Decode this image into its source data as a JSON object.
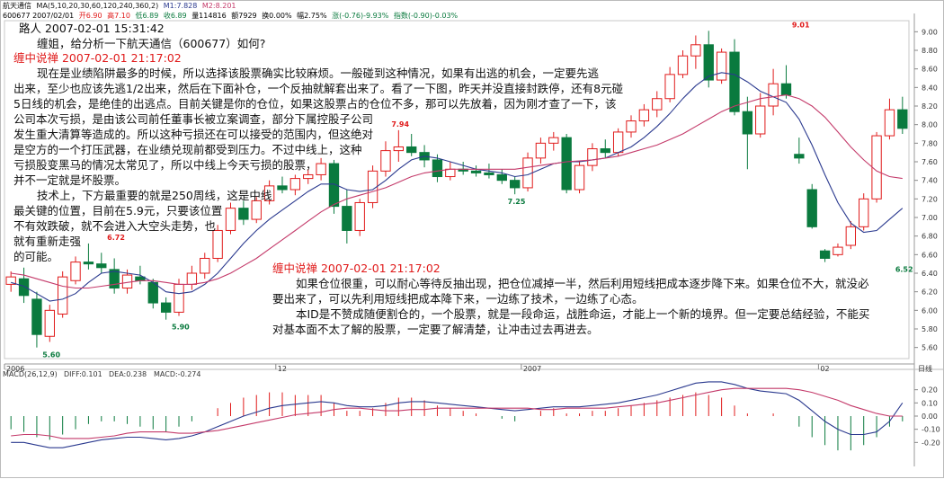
{
  "header": {
    "line1": {
      "stock": "航天通信",
      "ma_label": "MA(5,10,20,30,60,120,240,360,2)",
      "m1": "M1:7.828",
      "m2": "M2:8.201"
    },
    "line2": {
      "code_date": "600677 2007/02/01",
      "open": "开6.90",
      "high": "高7.10",
      "low": "低6.89",
      "close": "收6.89",
      "volume": "量114816",
      "amount": "额7929",
      "turnover": "换0.00%",
      "amplitude": "幅2.75%",
      "change": "涨(-0.76)-9.93%",
      "index": "指数(-0.90)-0.03%"
    },
    "colors": {
      "up": "#e01b1b",
      "down": "#0a7a3e",
      "ma1": "#2b3a8f",
      "ma2": "#c43a6a"
    }
  },
  "posts": [
    {
      "author": "路人 2007-02-01 15:31:42",
      "lines": [
        "缠姐，给分析一下航天通信（600677）如何?"
      ]
    },
    {
      "author": "缠中说禅 2007-02-01 21:17:02",
      "lines": [
        "现在是业绩陷阱最多的时候，所以选择该股票确实比较麻烦。一般碰到这种情况，如果有出逃的机会，一定要先逃",
        "出来，至少也应该先逃1/2出来，然后在下面补仓，一个反抽就解套出来了。看了一下图，昨天并没直接封跌停，还有8元碰",
        "5日线的机会，是绝佳的出逃点。目前关键是你的仓位，如果这股票占的仓位不多，那可以先放着，因为刚才查了一下，该",
        "公司本次亏损，是由该公司前任董事长被立案调查，部分下属控股子公司",
        "发生重大清算等造成的。所以这种亏损还在可以接受的范围内，但这绝对",
        "是空方的一个打压武器，在业绩兑现前都受到压力。不过中线上，这种",
        "亏损股变黑马的情况太常见了，所以中线上今天亏损的股票，",
        "并不一定就是坏股票。",
        "技术上，下方最重要的就是250周线，这是中线",
        "最关键的位置，目前在5.9元，只要该位置",
        "不有效跌破，就不会进入大空头走势，也",
        "就有重新走强",
        "的可能。"
      ]
    },
    {
      "author": "缠中说禅 2007-02-01 21:17:02",
      "lines": [
        "如果仓位很重，可以耐心等待反抽出现，把仓位减掉一半，然后利用短线把成本逐步降下来。如果仓位不大，就没必",
        "要出来了，可以先利用短线把成本降下来，一边练了技术，一边练了心态。",
        "本ID是不赞成随便割仓的，一个股票，就是一段命运，战胜命运，才能上一个新的境界。但一定要总结经验，不能买",
        "对基本面不太了解的股票，一定要了解清楚，让冲击过去再进去。"
      ]
    }
  ],
  "chart_data": [
    {
      "type": "candlestick",
      "ylim": [
        5.5,
        9.1
      ],
      "yticks": [
        "9.00",
        "8.80",
        "8.60",
        "8.40",
        "8.20",
        "8.00",
        "7.80",
        "7.60",
        "7.40",
        "7.20",
        "7.00",
        "6.80",
        "6.60",
        "6.40",
        "6.20",
        "6.00",
        "5.80",
        "5.60"
      ],
      "xticks": [
        {
          "label": "2006",
          "i": 0
        },
        {
          "label": "12",
          "i": 21
        },
        {
          "label": "2007",
          "i": 40
        },
        {
          "label": "02",
          "i": 63
        }
      ],
      "period_label": "日线",
      "annotations": [
        {
          "text": "5.60",
          "i": 3,
          "value": 5.6,
          "pos": "below"
        },
        {
          "text": "6.72",
          "i": 8,
          "value": 6.72,
          "pos": "above"
        },
        {
          "text": "5.90",
          "i": 13,
          "value": 5.9,
          "pos": "below"
        },
        {
          "text": "7.94",
          "i": 30,
          "value": 7.94,
          "pos": "above"
        },
        {
          "text": "7.25",
          "i": 39,
          "value": 7.25,
          "pos": "below"
        },
        {
          "text": "9.01",
          "i": 61,
          "value": 9.01,
          "pos": "above"
        },
        {
          "text": "6.52",
          "i": 69,
          "value": 6.52,
          "pos": "below"
        }
      ],
      "candles": [
        {
          "o": 6.28,
          "h": 6.42,
          "l": 6.2,
          "c": 6.36
        },
        {
          "o": 6.34,
          "h": 6.46,
          "l": 6.08,
          "c": 6.16
        },
        {
          "o": 6.12,
          "h": 6.2,
          "l": 5.6,
          "c": 5.74
        },
        {
          "o": 5.72,
          "h": 6.06,
          "l": 5.66,
          "c": 6.0
        },
        {
          "o": 5.96,
          "h": 6.42,
          "l": 5.92,
          "c": 6.36
        },
        {
          "o": 6.32,
          "h": 6.58,
          "l": 6.28,
          "c": 6.52
        },
        {
          "o": 6.52,
          "h": 6.72,
          "l": 6.44,
          "c": 6.5
        },
        {
          "o": 6.5,
          "h": 6.62,
          "l": 6.4,
          "c": 6.46
        },
        {
          "o": 6.44,
          "h": 6.56,
          "l": 6.18,
          "c": 6.24
        },
        {
          "o": 6.24,
          "h": 6.44,
          "l": 6.18,
          "c": 6.38
        },
        {
          "o": 6.36,
          "h": 6.48,
          "l": 6.28,
          "c": 6.32
        },
        {
          "o": 6.3,
          "h": 6.34,
          "l": 6.02,
          "c": 6.08
        },
        {
          "o": 6.08,
          "h": 6.14,
          "l": 5.9,
          "c": 5.98
        },
        {
          "o": 5.98,
          "h": 6.34,
          "l": 5.94,
          "c": 6.28
        },
        {
          "o": 6.28,
          "h": 6.48,
          "l": 6.22,
          "c": 6.4
        },
        {
          "o": 6.4,
          "h": 6.62,
          "l": 6.34,
          "c": 6.56
        },
        {
          "o": 6.56,
          "h": 6.92,
          "l": 6.52,
          "c": 6.86
        },
        {
          "o": 6.86,
          "h": 7.16,
          "l": 6.82,
          "c": 7.1
        },
        {
          "o": 7.1,
          "h": 7.18,
          "l": 6.92,
          "c": 6.98
        },
        {
          "o": 6.98,
          "h": 7.22,
          "l": 6.94,
          "c": 7.18
        },
        {
          "o": 7.18,
          "h": 7.4,
          "l": 7.14,
          "c": 7.34
        },
        {
          "o": 7.34,
          "h": 7.44,
          "l": 7.26,
          "c": 7.3
        },
        {
          "o": 7.3,
          "h": 7.46,
          "l": 7.24,
          "c": 7.42
        },
        {
          "o": 7.42,
          "h": 7.52,
          "l": 7.36,
          "c": 7.46
        },
        {
          "o": 7.46,
          "h": 7.64,
          "l": 7.4,
          "c": 7.58
        },
        {
          "o": 7.58,
          "h": 7.62,
          "l": 7.04,
          "c": 7.12
        },
        {
          "o": 7.12,
          "h": 7.3,
          "l": 6.72,
          "c": 6.86
        },
        {
          "o": 6.86,
          "h": 7.2,
          "l": 6.8,
          "c": 7.16
        },
        {
          "o": 7.16,
          "h": 7.56,
          "l": 7.1,
          "c": 7.5
        },
        {
          "o": 7.5,
          "h": 7.82,
          "l": 7.44,
          "c": 7.72
        },
        {
          "o": 7.72,
          "h": 7.94,
          "l": 7.6,
          "c": 7.76
        },
        {
          "o": 7.76,
          "h": 7.9,
          "l": 7.66,
          "c": 7.7
        },
        {
          "o": 7.7,
          "h": 7.78,
          "l": 7.54,
          "c": 7.62
        },
        {
          "o": 7.62,
          "h": 7.68,
          "l": 7.38,
          "c": 7.44
        },
        {
          "o": 7.44,
          "h": 7.6,
          "l": 7.4,
          "c": 7.52
        },
        {
          "o": 7.52,
          "h": 7.6,
          "l": 7.46,
          "c": 7.5
        },
        {
          "o": 7.5,
          "h": 7.56,
          "l": 7.44,
          "c": 7.48
        },
        {
          "o": 7.48,
          "h": 7.58,
          "l": 7.42,
          "c": 7.46
        },
        {
          "o": 7.46,
          "h": 7.52,
          "l": 7.36,
          "c": 7.4
        },
        {
          "o": 7.4,
          "h": 7.44,
          "l": 7.25,
          "c": 7.32
        },
        {
          "o": 7.32,
          "h": 7.7,
          "l": 7.28,
          "c": 7.64
        },
        {
          "o": 7.64,
          "h": 7.86,
          "l": 7.58,
          "c": 7.8
        },
        {
          "o": 7.8,
          "h": 7.92,
          "l": 7.72,
          "c": 7.86
        },
        {
          "o": 7.86,
          "h": 7.9,
          "l": 7.26,
          "c": 7.3
        },
        {
          "o": 7.3,
          "h": 7.6,
          "l": 7.26,
          "c": 7.56
        },
        {
          "o": 7.56,
          "h": 7.8,
          "l": 7.5,
          "c": 7.74
        },
        {
          "o": 7.74,
          "h": 7.84,
          "l": 7.64,
          "c": 7.7
        },
        {
          "o": 7.7,
          "h": 7.96,
          "l": 7.66,
          "c": 7.92
        },
        {
          "o": 7.92,
          "h": 8.1,
          "l": 7.86,
          "c": 8.04
        },
        {
          "o": 8.04,
          "h": 8.22,
          "l": 7.98,
          "c": 8.16
        },
        {
          "o": 8.16,
          "h": 8.36,
          "l": 8.08,
          "c": 8.28
        },
        {
          "o": 8.28,
          "h": 8.62,
          "l": 8.24,
          "c": 8.54
        },
        {
          "o": 8.54,
          "h": 8.8,
          "l": 8.5,
          "c": 8.74
        },
        {
          "o": 8.74,
          "h": 8.96,
          "l": 8.6,
          "c": 8.86
        },
        {
          "o": 8.86,
          "h": 9.01,
          "l": 8.4,
          "c": 8.48
        },
        {
          "o": 8.48,
          "h": 8.82,
          "l": 8.44,
          "c": 8.78
        },
        {
          "o": 8.78,
          "h": 8.92,
          "l": 8.1,
          "c": 8.14
        },
        {
          "o": 8.14,
          "h": 8.3,
          "l": 7.52,
          "c": 7.9
        },
        {
          "o": 7.9,
          "h": 8.34,
          "l": 7.86,
          "c": 8.2
        },
        {
          "o": 8.2,
          "h": 8.6,
          "l": 8.1,
          "c": 8.44
        },
        {
          "o": 8.44,
          "h": 8.64,
          "l": 8.28,
          "c": 8.32
        },
        {
          "o": 7.68,
          "h": 7.86,
          "l": 7.58,
          "c": 7.64
        },
        {
          "o": 7.3,
          "h": 7.36,
          "l": 6.88,
          "c": 6.9
        },
        {
          "o": 6.64,
          "h": 6.66,
          "l": 6.52,
          "c": 6.56
        },
        {
          "o": 6.6,
          "h": 6.72,
          "l": 6.58,
          "c": 6.68
        },
        {
          "o": 6.7,
          "h": 6.96,
          "l": 6.66,
          "c": 6.9
        },
        {
          "o": 6.9,
          "h": 7.26,
          "l": 6.86,
          "c": 7.2
        },
        {
          "o": 7.2,
          "h": 7.92,
          "l": 7.16,
          "c": 7.88
        },
        {
          "o": 7.88,
          "h": 8.28,
          "l": 7.84,
          "c": 8.16
        },
        {
          "o": 8.16,
          "h": 8.3,
          "l": 7.9,
          "c": 7.96
        }
      ],
      "ma_short": [
        6.3,
        6.26,
        6.18,
        6.1,
        6.12,
        6.18,
        6.3,
        6.4,
        6.42,
        6.4,
        6.38,
        6.3,
        6.2,
        6.18,
        6.2,
        6.28,
        6.4,
        6.56,
        6.72,
        6.86,
        6.98,
        7.08,
        7.18,
        7.28,
        7.36,
        7.36,
        7.3,
        7.28,
        7.3,
        7.4,
        7.52,
        7.62,
        7.66,
        7.64,
        7.6,
        7.56,
        7.52,
        7.5,
        7.48,
        7.44,
        7.46,
        7.52,
        7.58,
        7.6,
        7.6,
        7.62,
        7.64,
        7.7,
        7.76,
        7.86,
        7.98,
        8.12,
        8.28,
        8.42,
        8.52,
        8.56,
        8.54,
        8.46,
        8.36,
        8.3,
        8.24,
        8.06,
        7.78,
        7.46,
        7.16,
        6.94,
        6.84,
        6.86,
        6.98,
        7.1
      ],
      "ma_long": [
        6.4,
        6.38,
        6.34,
        6.3,
        6.26,
        6.24,
        6.24,
        6.26,
        6.28,
        6.3,
        6.32,
        6.32,
        6.3,
        6.28,
        6.28,
        6.3,
        6.34,
        6.4,
        6.48,
        6.56,
        6.66,
        6.76,
        6.86,
        6.96,
        7.06,
        7.14,
        7.2,
        7.24,
        7.28,
        7.32,
        7.38,
        7.44,
        7.48,
        7.5,
        7.52,
        7.52,
        7.52,
        7.52,
        7.52,
        7.52,
        7.54,
        7.56,
        7.58,
        7.6,
        7.61,
        7.62,
        7.64,
        7.66,
        7.7,
        7.74,
        7.78,
        7.84,
        7.9,
        7.98,
        8.06,
        8.14,
        8.2,
        8.24,
        8.28,
        8.3,
        8.32,
        8.28,
        8.2,
        8.08,
        7.92,
        7.76,
        7.62,
        7.5,
        7.44,
        7.42
      ]
    },
    {
      "type": "bar",
      "title": "MACD(26,12,9)",
      "diff_label": "DIFF:0.101",
      "dea_label": "DEA:0.238",
      "macd_label": "MACD:-0.274",
      "ylim": [
        -0.3,
        0.3
      ],
      "yticks": [
        "0.20",
        "0.10",
        "0.00",
        "-0.10",
        "-0.20"
      ],
      "hist": [
        -0.1,
        -0.12,
        -0.16,
        -0.18,
        -0.14,
        -0.1,
        -0.06,
        -0.04,
        -0.04,
        -0.06,
        -0.08,
        -0.1,
        -0.12,
        -0.08,
        -0.04,
        0.0,
        0.06,
        0.1,
        0.14,
        0.16,
        0.18,
        0.18,
        0.16,
        0.16,
        0.16,
        0.1,
        0.04,
        0.04,
        0.06,
        0.1,
        0.14,
        0.14,
        0.12,
        0.08,
        0.06,
        0.04,
        0.02,
        0.0,
        -0.02,
        -0.04,
        0.0,
        0.04,
        0.06,
        0.02,
        0.02,
        0.04,
        0.04,
        0.06,
        0.08,
        0.1,
        0.12,
        0.14,
        0.16,
        0.18,
        0.16,
        0.14,
        0.08,
        0.02,
        0.0,
        0.02,
        0.0,
        -0.08,
        -0.16,
        -0.22,
        -0.26,
        -0.26,
        -0.22,
        -0.16,
        -0.08,
        -0.04
      ],
      "diff": [
        -0.2,
        -0.2,
        -0.22,
        -0.24,
        -0.24,
        -0.22,
        -0.2,
        -0.18,
        -0.17,
        -0.16,
        -0.16,
        -0.17,
        -0.18,
        -0.17,
        -0.15,
        -0.12,
        -0.08,
        -0.04,
        0.0,
        0.03,
        0.06,
        0.08,
        0.09,
        0.1,
        0.11,
        0.1,
        0.08,
        0.07,
        0.07,
        0.08,
        0.1,
        0.11,
        0.11,
        0.1,
        0.09,
        0.08,
        0.07,
        0.06,
        0.05,
        0.04,
        0.05,
        0.06,
        0.07,
        0.07,
        0.07,
        0.08,
        0.09,
        0.1,
        0.12,
        0.14,
        0.16,
        0.19,
        0.22,
        0.25,
        0.26,
        0.26,
        0.24,
        0.21,
        0.19,
        0.18,
        0.17,
        0.12,
        0.04,
        -0.04,
        -0.1,
        -0.14,
        -0.14,
        -0.12,
        -0.04,
        0.1
      ],
      "dea": [
        -0.15,
        -0.14,
        -0.14,
        -0.15,
        -0.17,
        -0.17,
        -0.17,
        -0.16,
        -0.15,
        -0.13,
        -0.12,
        -0.12,
        -0.12,
        -0.13,
        -0.13,
        -0.12,
        -0.11,
        -0.09,
        -0.07,
        -0.05,
        -0.03,
        -0.01,
        0.01,
        0.02,
        0.03,
        0.05,
        0.06,
        0.06,
        0.05,
        0.04,
        0.04,
        0.05,
        0.05,
        0.06,
        0.06,
        0.06,
        0.06,
        0.06,
        0.06,
        0.06,
        0.06,
        0.05,
        0.05,
        0.06,
        0.06,
        0.06,
        0.06,
        0.07,
        0.08,
        0.09,
        0.1,
        0.12,
        0.14,
        0.16,
        0.18,
        0.2,
        0.21,
        0.21,
        0.21,
        0.21,
        0.21,
        0.2,
        0.18,
        0.15,
        0.12,
        0.08,
        0.05,
        0.02,
        0.0,
        0.0
      ]
    }
  ]
}
